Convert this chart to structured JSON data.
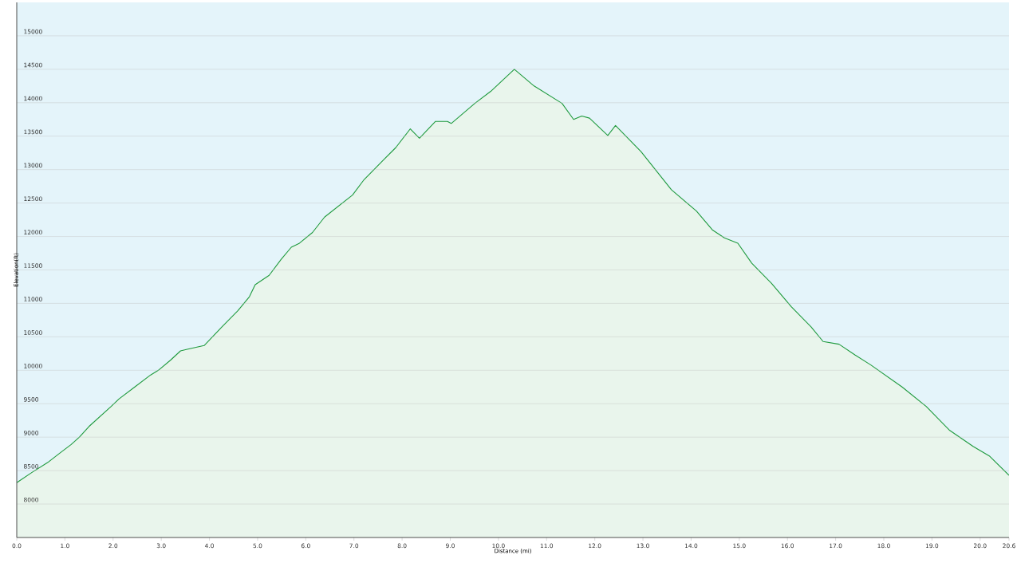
{
  "chart_data": {
    "type": "area",
    "xlabel": "Distance  (mi)",
    "ylabel": "Elevation(ft)",
    "x": [
      0,
      0.31,
      0.64,
      0.89,
      1.13,
      1.3,
      1.5,
      1.96,
      2.12,
      2.45,
      2.78,
      2.94,
      3.19,
      3.4,
      3.52,
      3.76,
      3.89,
      4.26,
      4.59,
      4.83,
      4.95,
      5.24,
      5.49,
      5.7,
      5.87,
      6.14,
      6.39,
      6.97,
      7.21,
      7.62,
      7.87,
      8.17,
      8.36,
      8.69,
      8.94,
      9.02,
      9.51,
      9.84,
      10.33,
      10.74,
      11.32,
      11.56,
      11.73,
      11.89,
      12.27,
      12.43,
      12.96,
      13.29,
      13.59,
      14.11,
      14.44,
      14.69,
      14.97,
      15.26,
      15.67,
      16.08,
      16.49,
      16.74,
      17.07,
      17.4,
      17.73,
      18.38,
      18.88,
      19.37,
      19.86,
      20.19,
      20.6
    ],
    "values": [
      8320,
      8470,
      8620,
      8760,
      8890,
      9000,
      9160,
      9460,
      9570,
      9750,
      9930,
      10000,
      10150,
      10290,
      10310,
      10350,
      10370,
      10650,
      10890,
      11100,
      11280,
      11420,
      11660,
      11840,
      11900,
      12060,
      12290,
      12620,
      12850,
      13150,
      13330,
      13610,
      13470,
      13720,
      13720,
      13690,
      13990,
      14170,
      14500,
      14250,
      13990,
      13750,
      13800,
      13770,
      13510,
      13660,
      13270,
      12970,
      12700,
      12380,
      12100,
      11980,
      11900,
      11600,
      11300,
      10950,
      10650,
      10430,
      10390,
      10230,
      10080,
      9750,
      9460,
      9100,
      8860,
      8720,
      8430
    ],
    "color": "#1f9a3e",
    "xlim": [
      0,
      20.6
    ],
    "ylim": [
      7500,
      15500
    ],
    "xticks": [
      {
        "value": 0,
        "label": "0.0"
      },
      {
        "value": 1,
        "label": "1.0"
      },
      {
        "value": 2,
        "label": "2.0"
      },
      {
        "value": 3,
        "label": "3.0"
      },
      {
        "value": 4,
        "label": "4.0"
      },
      {
        "value": 5,
        "label": "5.0"
      },
      {
        "value": 6,
        "label": "6.0"
      },
      {
        "value": 7,
        "label": "7.0"
      },
      {
        "value": 8,
        "label": "8.0"
      },
      {
        "value": 9,
        "label": "9.0"
      },
      {
        "value": 10,
        "label": "10.0"
      },
      {
        "value": 11,
        "label": "11.0"
      },
      {
        "value": 12,
        "label": "12.0"
      },
      {
        "value": 13,
        "label": "13.0"
      },
      {
        "value": 14,
        "label": "14.0"
      },
      {
        "value": 15,
        "label": "15.0"
      },
      {
        "value": 16,
        "label": "16.0"
      },
      {
        "value": 17,
        "label": "17.0"
      },
      {
        "value": 18,
        "label": "18.0"
      },
      {
        "value": 19,
        "label": "19.0"
      },
      {
        "value": 20,
        "label": "20.0"
      },
      {
        "value": 20.6,
        "label": "20.6"
      }
    ],
    "yticks": [
      8000,
      8500,
      9000,
      9500,
      10000,
      10500,
      11000,
      11500,
      12000,
      12500,
      13000,
      13500,
      14000,
      14500,
      15000
    ],
    "grid": "y",
    "line_style": "solid"
  }
}
